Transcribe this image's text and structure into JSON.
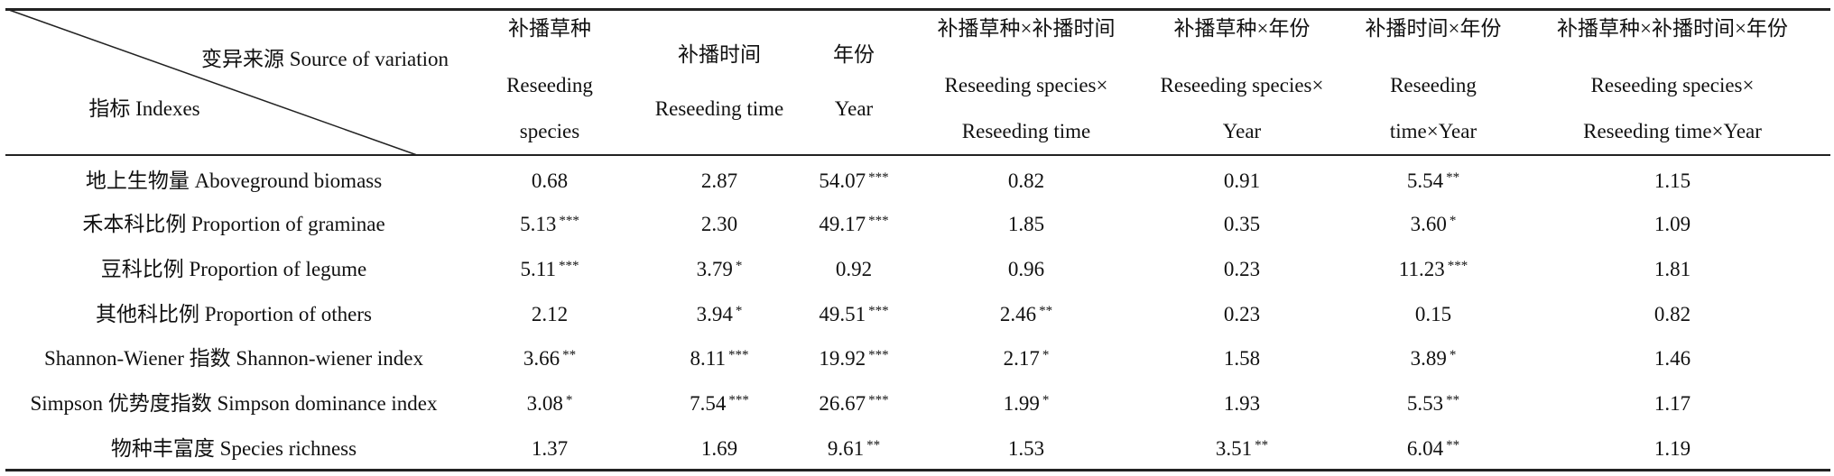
{
  "table": {
    "corner": {
      "source": "变异来源 Source of variation",
      "index": "指标 Indexes"
    },
    "columns": [
      [
        "补播草种",
        "Reseeding",
        "species"
      ],
      [
        "补播时间",
        "Reseeding time"
      ],
      [
        "年份",
        "Year"
      ],
      [
        "补播草种×补播时间",
        "Reseeding species×",
        "Reseeding time"
      ],
      [
        "补播草种×年份",
        "Reseeding species×",
        "Year"
      ],
      [
        "补播时间×年份",
        "Reseeding",
        "time×Year"
      ],
      [
        "补播草种×补播时间×年份",
        "Reseeding species×",
        "Reseeding time×Year"
      ]
    ],
    "rows": [
      {
        "label": "地上生物量 Aboveground biomass",
        "cells": [
          {
            "value": "0.68"
          },
          {
            "value": "2.87"
          },
          {
            "value": "54.07",
            "sig": "***"
          },
          {
            "value": "0.82"
          },
          {
            "value": "0.91"
          },
          {
            "value": "5.54",
            "sig": "**"
          },
          {
            "value": "1.15"
          }
        ]
      },
      {
        "label": "禾本科比例 Proportion of graminae",
        "cells": [
          {
            "value": "5.13",
            "sig": "***"
          },
          {
            "value": "2.30"
          },
          {
            "value": "49.17",
            "sig": "***"
          },
          {
            "value": "1.85"
          },
          {
            "value": "0.35"
          },
          {
            "value": "3.60",
            "sig": "*"
          },
          {
            "value": "1.09"
          }
        ]
      },
      {
        "label": "豆科比例 Proportion of legume",
        "cells": [
          {
            "value": "5.11",
            "sig": "***"
          },
          {
            "value": "3.79",
            "sig": "*"
          },
          {
            "value": "0.92"
          },
          {
            "value": "0.96"
          },
          {
            "value": "0.23"
          },
          {
            "value": "11.23",
            "sig": "***"
          },
          {
            "value": "1.81"
          }
        ]
      },
      {
        "label": "其他科比例 Proportion of others",
        "cells": [
          {
            "value": "2.12"
          },
          {
            "value": "3.94",
            "sig": "*"
          },
          {
            "value": "49.51",
            "sig": "***"
          },
          {
            "value": "2.46",
            "sig": "**"
          },
          {
            "value": "0.23"
          },
          {
            "value": "0.15"
          },
          {
            "value": "0.82"
          }
        ]
      },
      {
        "label": "Shannon-Wiener 指数 Shannon-wiener index",
        "cells": [
          {
            "value": "3.66",
            "sig": "**"
          },
          {
            "value": "8.11",
            "sig": "***"
          },
          {
            "value": "19.92",
            "sig": "***"
          },
          {
            "value": "2.17",
            "sig": "*"
          },
          {
            "value": "1.58"
          },
          {
            "value": "3.89",
            "sig": "*"
          },
          {
            "value": "1.46"
          }
        ]
      },
      {
        "label": "Simpson 优势度指数 Simpson dominance index",
        "cells": [
          {
            "value": "3.08",
            "sig": "*"
          },
          {
            "value": "7.54",
            "sig": "***"
          },
          {
            "value": "26.67",
            "sig": "***"
          },
          {
            "value": "1.99",
            "sig": "*"
          },
          {
            "value": "1.93"
          },
          {
            "value": "5.53",
            "sig": "**"
          },
          {
            "value": "1.17"
          }
        ]
      },
      {
        "label": "物种丰富度 Species richness",
        "cells": [
          {
            "value": "1.37"
          },
          {
            "value": "1.69"
          },
          {
            "value": "9.61",
            "sig": "**"
          },
          {
            "value": "1.53"
          },
          {
            "value": "3.51",
            "sig": "**"
          },
          {
            "value": "6.04",
            "sig": "**"
          },
          {
            "value": "1.19"
          }
        ]
      }
    ]
  }
}
